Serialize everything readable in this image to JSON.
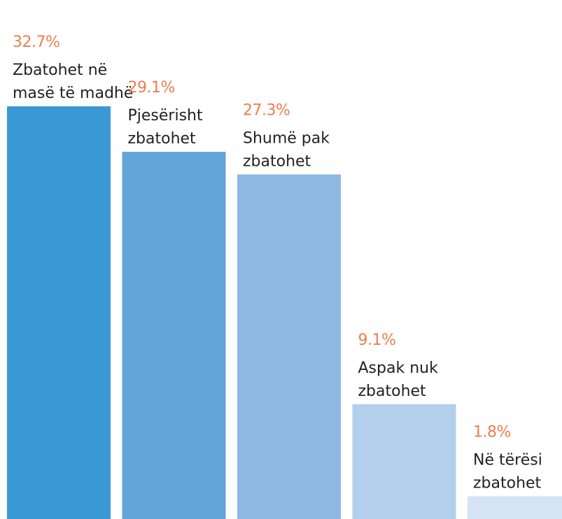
{
  "chart_data": {
    "type": "bar",
    "categories": [
      "Zbatohet në masë të madhë",
      "Pjesërisht zbatohet",
      "Shumë pak zbatohet",
      "Aspak nuk zbatohet",
      "Në tërësi zbatohet"
    ],
    "values": [
      32.7,
      29.1,
      27.3,
      9.1,
      1.8
    ],
    "value_labels": [
      "32.7%",
      "29.1%",
      "27.3%",
      "9.1%",
      "1.8%"
    ],
    "label_lines": [
      [
        "Zbatohet në",
        "masë të madhë"
      ],
      [
        "Pjesërisht",
        "zbatohet"
      ],
      [
        "Shumë pak",
        "zbatohet"
      ],
      [
        "Aspak nuk",
        "zbatohet"
      ],
      [
        "Në tërësi",
        "zbatohet"
      ]
    ],
    "colors": [
      "#3a98d4",
      "#64a5d8",
      "#8db8e1",
      "#b4cfeb",
      "#d5e3f4"
    ],
    "label_color": "#ee7d4f",
    "text_color": "#222222",
    "title": "",
    "xlabel": "",
    "ylabel": "",
    "ylim": [
      0,
      35
    ],
    "grid": false,
    "legend": "none"
  }
}
